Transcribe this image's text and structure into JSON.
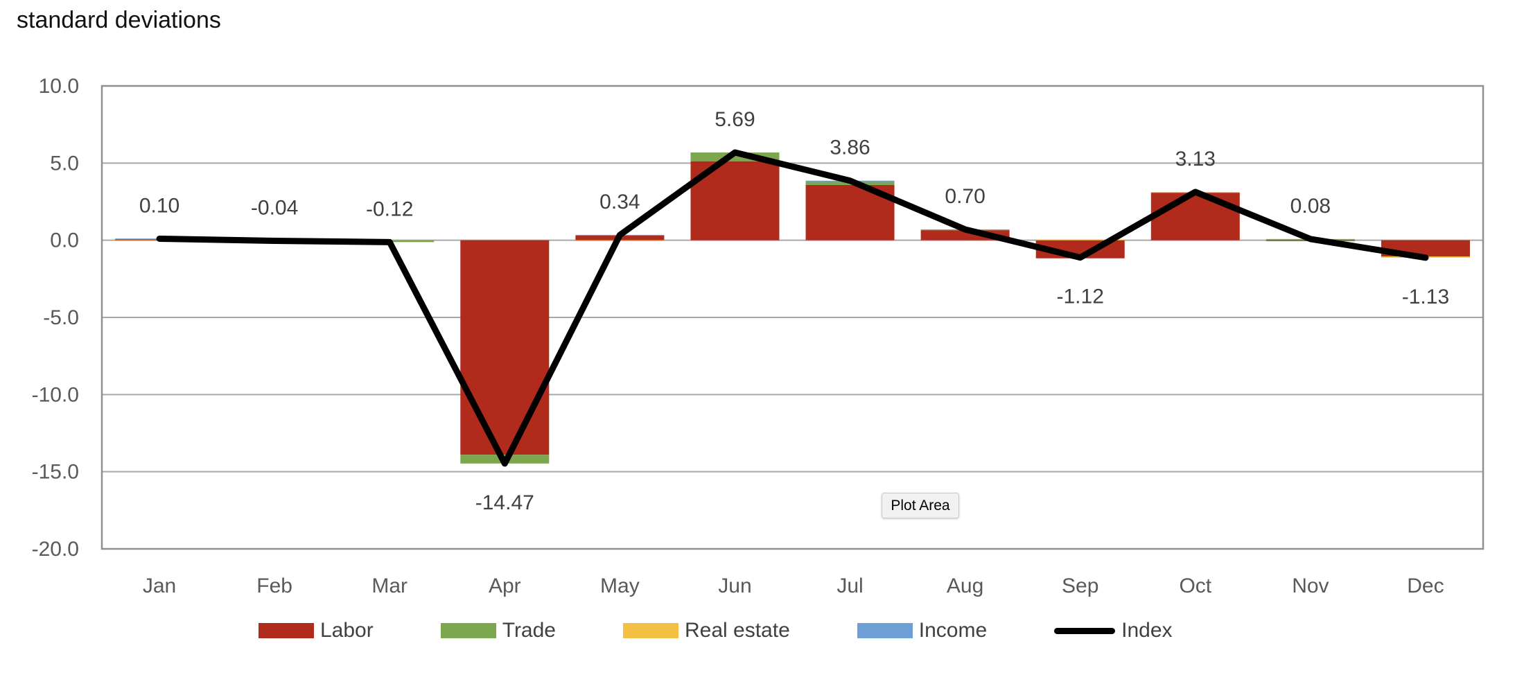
{
  "title": "standard deviations",
  "tooltip": {
    "label": "Plot Area"
  },
  "colors": {
    "grid": "#a8a8a8",
    "plot_border": "#8f8f8f",
    "axis_tick_label": "#595959",
    "data_label": "#404040",
    "background": "#ffffff"
  },
  "chart_data": {
    "type": "bar",
    "subtype": "stacked-bar-with-line",
    "title": "standard deviations",
    "categories": [
      "Jan",
      "Feb",
      "Mar",
      "Apr",
      "May",
      "Jun",
      "Jul",
      "Aug",
      "Sep",
      "Oct",
      "Nov",
      "Dec"
    ],
    "series": [
      {
        "name": "Labor",
        "type": "bar",
        "color": "#b02b1b",
        "values": [
          0.06,
          0.0,
          0.0,
          -13.9,
          0.3,
          5.12,
          3.58,
          0.65,
          -1.17,
          3.08,
          -0.03,
          -1.05
        ]
      },
      {
        "name": "Trade",
        "type": "bar",
        "color": "#7ca74f",
        "values": [
          0.0,
          0.0,
          -0.12,
          -0.57,
          0.0,
          0.57,
          0.2,
          0.05,
          0.0,
          0.0,
          0.08,
          0.0
        ]
      },
      {
        "name": "Real estate",
        "type": "bar",
        "color": "#f3c043",
        "values": [
          -0.05,
          0.0,
          0.0,
          0.0,
          -0.06,
          0.0,
          0.0,
          0.0,
          0.05,
          0.05,
          0.0,
          -0.08
        ]
      },
      {
        "name": "Income",
        "type": "bar",
        "color": "#6d9ed6",
        "values": [
          0.05,
          0.0,
          0.0,
          0.0,
          0.05,
          0.0,
          0.08,
          0.0,
          0.0,
          0.0,
          0.0,
          0.0
        ]
      },
      {
        "name": "Index",
        "type": "line",
        "color": "#000000",
        "values": [
          0.1,
          -0.04,
          -0.12,
          -14.47,
          0.34,
          5.69,
          3.86,
          0.7,
          -1.12,
          3.13,
          0.08,
          -1.13
        ]
      }
    ],
    "data_labels": [
      "0.10",
      "-0.04",
      "-0.12",
      "-14.47",
      "0.34",
      "5.69",
      "3.86",
      "0.70",
      "-1.12",
      "3.13",
      "0.08",
      "-1.13"
    ],
    "data_label_sides": [
      "above",
      "above",
      "above",
      "below",
      "above",
      "above",
      "above",
      "above",
      "below",
      "above",
      "above",
      "below"
    ],
    "ylim": [
      -20,
      10
    ],
    "ytick_step": 5,
    "ytick_labels": [
      "10.0",
      "5.0",
      "0.0",
      "-5.0",
      "-10.0",
      "-15.0",
      "-20.0"
    ],
    "xlabel": "",
    "ylabel": "",
    "grid": true,
    "legend_position": "bottom"
  }
}
